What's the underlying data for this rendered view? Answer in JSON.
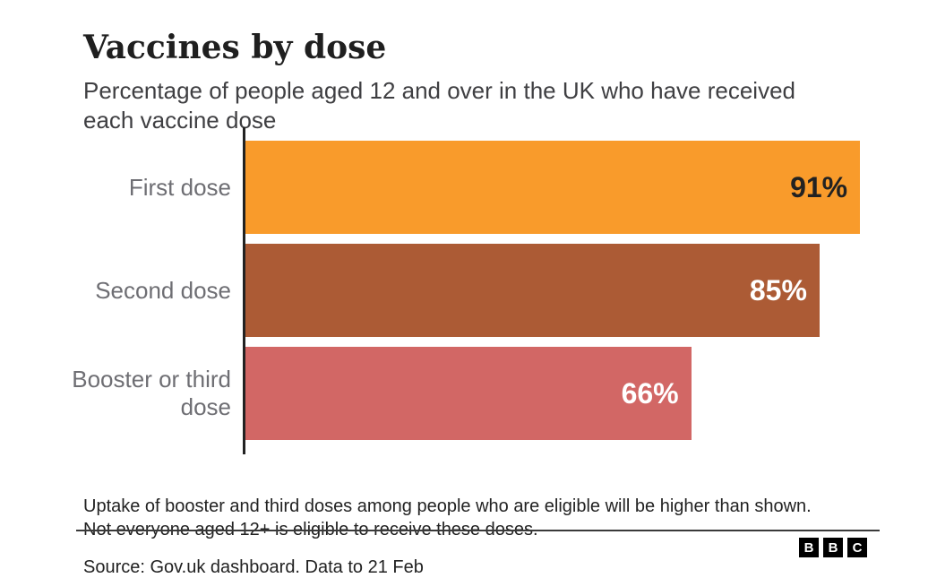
{
  "header": {
    "title": "Vaccines by dose",
    "subtitle": "Percentage of people aged 12 and over in the UK who have received each vaccine dose"
  },
  "chart_data": {
    "type": "bar",
    "orientation": "horizontal",
    "categories": [
      "First dose",
      "Second dose",
      "Booster or third dose"
    ],
    "values": [
      91,
      85,
      66
    ],
    "unit": "%",
    "value_labels": [
      "91%",
      "85%",
      "66%"
    ],
    "bar_colors": [
      "#F99B2B",
      "#AC5B35",
      "#D26765"
    ],
    "value_label_colors": [
      "#222222",
      "#FFFFFF",
      "#FFFFFF"
    ],
    "xlim": [
      0,
      100
    ],
    "xlabel": "",
    "ylabel": "",
    "grid": false,
    "legend": "none",
    "axis_color": "#222222"
  },
  "footer": {
    "note": "Uptake of booster and third doses among people who are eligible will be higher than shown. Not everyone aged 12+ is eligible to receive these doses.",
    "source": "Source: Gov.uk dashboard. Data to 21 Feb",
    "logo": [
      "B",
      "B",
      "C"
    ]
  }
}
